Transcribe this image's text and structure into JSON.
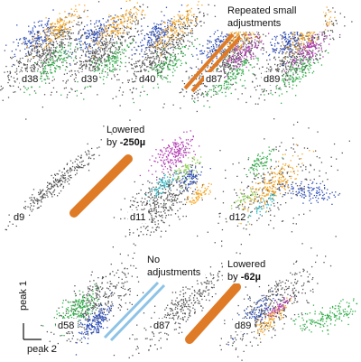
{
  "colors": {
    "gray": "#555555",
    "green": "#2fae47",
    "blue": "#2f4fb8",
    "orange": "#f5a623",
    "magenta": "#b43cb4",
    "cyan": "#2ab7c2",
    "lightgreen": "#8fd14f",
    "bar_orange": "#df7b26",
    "bar_blue": "#8ec3e6"
  },
  "rows": [
    {
      "panels": [
        {
          "label": "d38"
        },
        {
          "label": "d39"
        },
        {
          "label": "d40"
        },
        {
          "label": "d87"
        },
        {
          "label": "d89"
        }
      ],
      "note": {
        "line1": "Repeated small",
        "line2": "adjustments"
      }
    },
    {
      "panels": [
        {
          "label": "d9"
        },
        {
          "label": "d11"
        },
        {
          "label": "d12"
        }
      ],
      "note": {
        "line1": "Lowered",
        "line2_prefix": "by ",
        "line2_value": "-250µ"
      }
    },
    {
      "panels": [
        {
          "label": "d58"
        },
        {
          "label": "d87"
        },
        {
          "label": "d89"
        }
      ],
      "note_left": {
        "line1": "No",
        "line2": "adjustments"
      },
      "note_right": {
        "line1": "Lowered",
        "line2_prefix": "by ",
        "line2_value": "-62µ"
      }
    }
  ],
  "axes": {
    "y": "peak 1",
    "x": "peak 2"
  }
}
